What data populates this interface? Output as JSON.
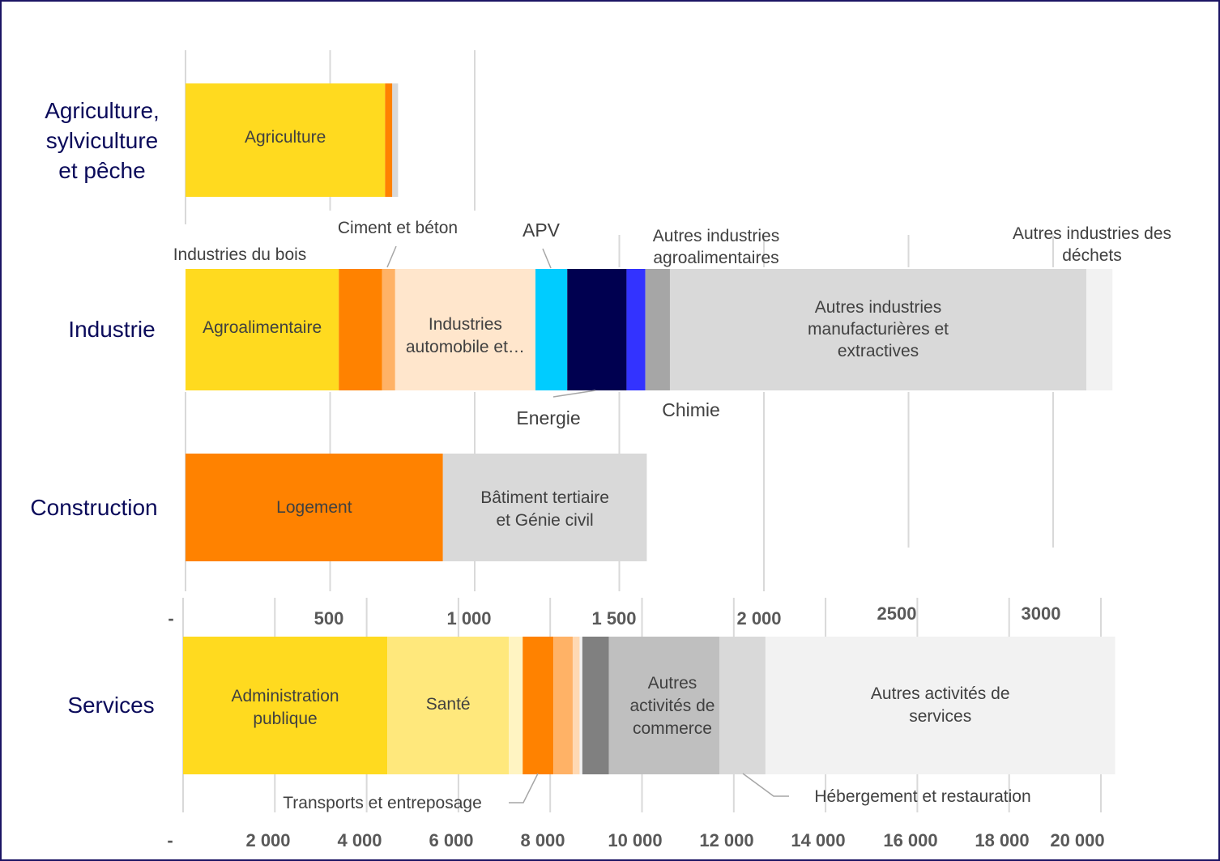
{
  "chart_data": [
    {
      "type": "bar",
      "orientation": "horizontal",
      "stacked": true,
      "x_ticks": [
        "-",
        "500",
        "1 000",
        "1 500",
        "2 000",
        "2500",
        "3000"
      ],
      "xlim": [
        0,
        3000
      ],
      "grid": true,
      "categories": [
        "Agriculture, sylviculture et pêche",
        "Industrie",
        "Construction"
      ],
      "rows": [
        {
          "category": "Agriculture, sylviculture et pêche",
          "segments": [
            {
              "label": "Agriculture",
              "value": 690,
              "color": "#FFDA1F"
            },
            {
              "label": "",
              "value": 25,
              "color": "#FF8200"
            },
            {
              "label": "",
              "value": 20,
              "color": "#D9D9D9"
            }
          ]
        },
        {
          "category": "Industrie",
          "segments": [
            {
              "label": "Agroalimentaire",
              "value": 530,
              "color": "#FFDA1F"
            },
            {
              "label": "Industries du bois",
              "value": 150,
              "color": "#FF8200"
            },
            {
              "label": "Ciment et béton",
              "value": 45,
              "color": "#FFB266"
            },
            {
              "label": "Industries automobile et…",
              "value": 485,
              "color": "#FFE6CC"
            },
            {
              "label": "APV",
              "value": 110,
              "color": "#00CCFF"
            },
            {
              "label": "Energie",
              "value": 205,
              "color": "#000050"
            },
            {
              "label": "Chimie",
              "value": 65,
              "color": "#3333FF"
            },
            {
              "label": "Autres industries agroalimentaires",
              "value": 85,
              "color": "#A6A6A6"
            },
            {
              "label": "Autres industries manufacturières et extractives",
              "value": 1440,
              "color": "#D9D9D9"
            },
            {
              "label": "Autres industries des déchets",
              "value": 90,
              "color": "#F2F2F2"
            }
          ]
        },
        {
          "category": "Construction",
          "segments": [
            {
              "label": "Logement",
              "value": 890,
              "color": "#FF8200"
            },
            {
              "label": "Bâtiment tertiaire et Génie civil",
              "value": 705,
              "color": "#D9D9D9"
            }
          ]
        }
      ]
    },
    {
      "type": "bar",
      "orientation": "horizontal",
      "stacked": true,
      "x_ticks": [
        "-",
        "2 000",
        "4 000",
        "6 000",
        "8 000",
        "10 000",
        "12 000",
        "14 000",
        "16 000",
        "18 000",
        "20 000"
      ],
      "xlim": [
        0,
        20000
      ],
      "grid": true,
      "categories": [
        "Services"
      ],
      "rows": [
        {
          "category": "Services",
          "segments": [
            {
              "label": "Administration publique",
              "value": 4450,
              "color": "#FFDA1F"
            },
            {
              "label": "Santé",
              "value": 2650,
              "color": "#FFE87C"
            },
            {
              "label": "",
              "value": 300,
              "color": "#FFF4C2"
            },
            {
              "label": "Transports et entreposage",
              "value": 670,
              "color": "#FF8200"
            },
            {
              "label": "",
              "value": 420,
              "color": "#FFB266"
            },
            {
              "label": "",
              "value": 150,
              "color": "#FFD9B3"
            },
            {
              "label": "",
              "value": 60,
              "color": "#F2F2F2"
            },
            {
              "label": "",
              "value": 580,
              "color": "#808080"
            },
            {
              "label": "Autres activités de commerce",
              "value": 2410,
              "color": "#BFBFBF"
            },
            {
              "label": "Hébergement et restauration",
              "value": 1000,
              "color": "#D9D9D9"
            },
            {
              "label": "Autres activités de services",
              "value": 7620,
              "color": "#F2F2F2"
            }
          ]
        }
      ]
    }
  ],
  "category_labels": {
    "agriculture": [
      "Agriculture,",
      "sylviculture",
      "et pêche"
    ],
    "industrie": "Industrie",
    "construction": "Construction",
    "services": "Services"
  },
  "bar_labels": {
    "agriculture": "Agriculture",
    "agroalimentaire": "Agroalimentaire",
    "bois": "Industries du bois",
    "ciment": "Ciment et béton",
    "automobile": [
      "Industries",
      "automobile et…"
    ],
    "apv": "APV",
    "energie": "Energie",
    "chimie": "Chimie",
    "autres_agro": [
      "Autres industries",
      "agroalimentaires"
    ],
    "autres_manuf": [
      "Autres industries",
      "manufacturières et",
      "extractives"
    ],
    "autres_dechets": [
      "Autres industries des",
      "déchets"
    ],
    "logement": "Logement",
    "batiment": [
      "Bâtiment tertiaire",
      "et Génie civil"
    ],
    "admin": [
      "Administration",
      "publique"
    ],
    "sante": "Santé",
    "transports": "Transports et entreposage",
    "autres_commerce": [
      "Autres",
      "activités de",
      "commerce"
    ],
    "hebergement": "Hébergement et restauration",
    "autres_services": [
      "Autres activités de",
      "services"
    ]
  }
}
